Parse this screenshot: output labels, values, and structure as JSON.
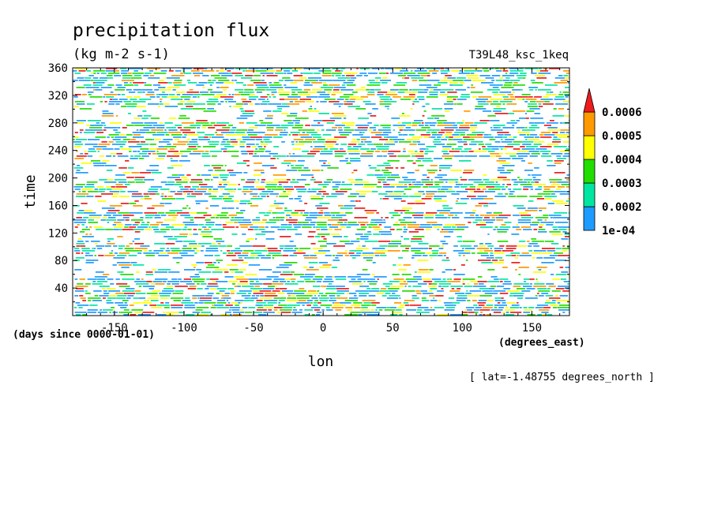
{
  "chart_data": {
    "type": "heatmap",
    "title": "precipitation flux",
    "units": "(kg m-2 s-1)",
    "dataset_label": "T39L48_ksc_1keq",
    "xlabel": "lon",
    "ylabel": "time",
    "x_units": "(degrees_east)",
    "y_units": "(days since 0000-01-01)",
    "slice_note": "[ lat=-1.48755 degrees_north ]",
    "xlim": [
      -180,
      177
    ],
    "ylim": [
      0,
      360
    ],
    "x_ticks": [
      -150,
      -100,
      -50,
      0,
      50,
      100,
      150
    ],
    "x_tick_labels": [
      "-150",
      "-100",
      "-50",
      "0",
      "50",
      "100",
      "150"
    ],
    "y_ticks": [
      40,
      80,
      120,
      160,
      200,
      240,
      280,
      320,
      360
    ],
    "y_tick_labels": [
      "40",
      "80",
      "120",
      "160",
      "200",
      "240",
      "280",
      "320",
      "360"
    ],
    "colorbar": {
      "levels": [
        0.0001,
        0.0002,
        0.0003,
        0.0004,
        0.0005,
        0.0006
      ],
      "level_labels": [
        "1e-04",
        "0.0002",
        "0.0003",
        "0.0004",
        "0.0005",
        "0.0006"
      ],
      "colors": [
        "#1e9bff",
        "#00e6a0",
        "#22dd00",
        "#ffff00",
        "#ff9900",
        "#ee1c1c"
      ],
      "extend": "max",
      "below_min_color": "#ffffff"
    }
  }
}
